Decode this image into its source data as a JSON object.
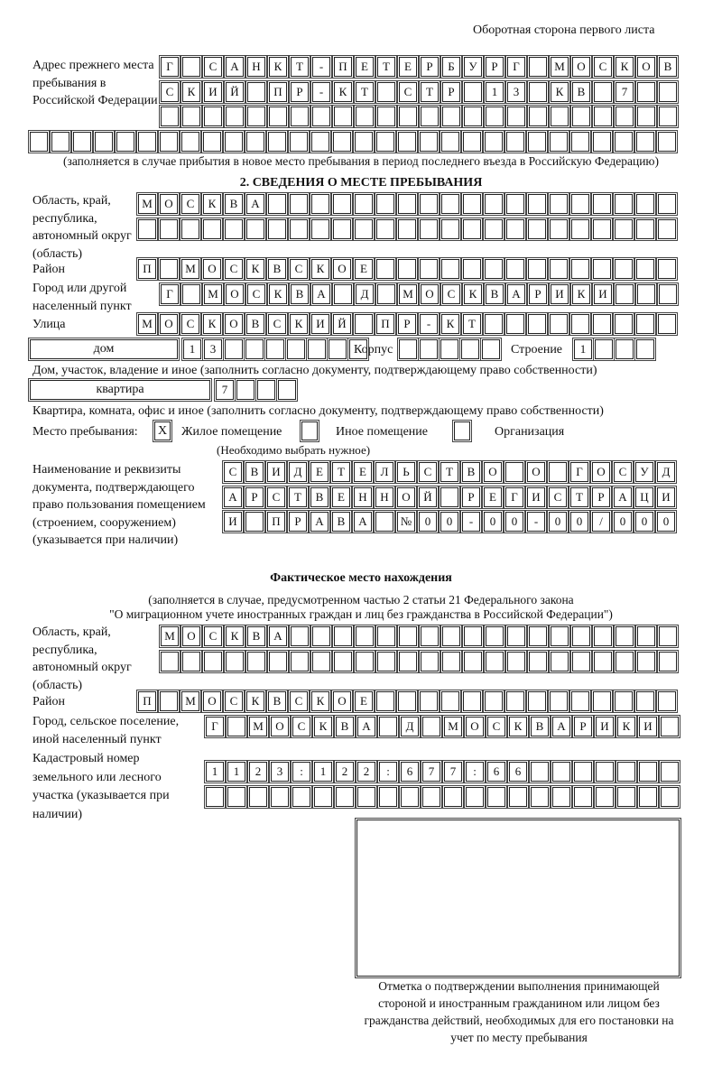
{
  "header": {
    "page_note": "Оборотная сторона первого листа"
  },
  "previous_address": {
    "label": "Адрес прежнего места пребывания в Российской Федерации",
    "rows": [
      [
        "Г",
        "",
        "С",
        "А",
        "Н",
        "К",
        "Т",
        "-",
        "П",
        "Е",
        "Т",
        "Е",
        "Р",
        "Б",
        "У",
        "Р",
        "Г",
        "",
        "М",
        "О",
        "С",
        "К",
        "О",
        "В"
      ],
      [
        "С",
        "К",
        "И",
        "Й",
        "",
        "П",
        "Р",
        "-",
        "К",
        "Т",
        "",
        "С",
        "Т",
        "Р",
        "",
        "1",
        "3",
        "",
        "К",
        "В",
        "",
        "7",
        "",
        ""
      ],
      [
        "",
        "",
        "",
        "",
        "",
        "",
        "",
        "",
        "",
        "",
        "",
        "",
        "",
        "",
        "",
        "",
        "",
        "",
        "",
        "",
        "",
        "",
        "",
        ""
      ],
      [
        "",
        "",
        "",
        "",
        "",
        "",
        "",
        "",
        "",
        "",
        "",
        "",
        "",
        "",
        "",
        "",
        "",
        "",
        "",
        "",
        "",
        "",
        "",
        "",
        "",
        "",
        "",
        "",
        "",
        ""
      ]
    ],
    "note": "(заполняется в случае прибытия в новое место пребывания в период последнего въезда в Российскую Федерацию)"
  },
  "section2": {
    "title": "2. СВЕДЕНИЯ О МЕСТЕ ПРЕБЫВАНИЯ",
    "region_label": "Область, край, республика, автономный округ (область)",
    "region_rows": [
      [
        "М",
        "О",
        "С",
        "К",
        "В",
        "А",
        "",
        "",
        "",
        "",
        "",
        "",
        "",
        "",
        "",
        "",
        "",
        "",
        "",
        "",
        "",
        "",
        "",
        "",
        ""
      ],
      [
        "",
        "",
        "",
        "",
        "",
        "",
        "",
        "",
        "",
        "",
        "",
        "",
        "",
        "",
        "",
        "",
        "",
        "",
        "",
        "",
        "",
        "",
        "",
        "",
        ""
      ]
    ],
    "district_label": "Район",
    "district_row": [
      "П",
      "",
      "М",
      "О",
      "С",
      "К",
      "В",
      "С",
      "К",
      "О",
      "Е",
      "",
      "",
      "",
      "",
      "",
      "",
      "",
      "",
      "",
      "",
      "",
      "",
      "",
      ""
    ],
    "city_label": "Город или другой населенный пункт",
    "city_row": [
      "Г",
      "",
      "М",
      "О",
      "С",
      "К",
      "В",
      "А",
      "",
      "Д",
      "",
      "М",
      "О",
      "С",
      "К",
      "В",
      "А",
      "Р",
      "И",
      "К",
      "И",
      "",
      "",
      ""
    ],
    "street_label": "Улица",
    "street_row": [
      "М",
      "О",
      "С",
      "К",
      "О",
      "В",
      "С",
      "К",
      "И",
      "Й",
      "",
      "П",
      "Р",
      "-",
      "К",
      "Т",
      "",
      "",
      "",
      "",
      "",
      "",
      "",
      "",
      ""
    ],
    "house_type": "дом",
    "house_row": [
      "1",
      "3",
      "",
      "",
      "",
      "",
      "",
      "",
      ""
    ],
    "korpus_label": "Корпус",
    "korpus_row": [
      "",
      "",
      "",
      "",
      ""
    ],
    "building_label": "Строение",
    "building_row": [
      "1",
      "",
      "",
      ""
    ],
    "house_note": "Дом, участок, владение и иное (заполнить согласно документу, подтверждающему право собственности)",
    "apt_type": "квартира",
    "apt_row": [
      "7",
      "",
      "",
      ""
    ],
    "apt_note": "Квартира, комната, офис и иное (заполнить согласно документу, подтверждающему право собственности)",
    "place_label": "Место пребывания:",
    "place_options": [
      {
        "label": "Жилое помещение",
        "mark": "X"
      },
      {
        "label": "Иное помещение",
        "mark": ""
      },
      {
        "label": "Организация",
        "mark": ""
      }
    ],
    "place_note": "(Необходимо выбрать нужное)",
    "doc_label": "Наименование и реквизиты документа, подтверждающего право пользования помещением (строением, сооружением) (указывается при наличии)",
    "doc_rows": [
      [
        "С",
        "В",
        "И",
        "Д",
        "Е",
        "Т",
        "Е",
        "Л",
        "Ь",
        "С",
        "Т",
        "В",
        "О",
        "",
        "О",
        "",
        "Г",
        "О",
        "С",
        "У",
        "Д"
      ],
      [
        "А",
        "Р",
        "С",
        "Т",
        "В",
        "Е",
        "Н",
        "Н",
        "О",
        "Й",
        "",
        "Р",
        "Е",
        "Г",
        "И",
        "С",
        "Т",
        "Р",
        "А",
        "Ц",
        "И"
      ],
      [
        "И",
        "",
        "П",
        "Р",
        "А",
        "В",
        "А",
        "",
        "№",
        "0",
        "0",
        "-",
        "0",
        "0",
        "-",
        "0",
        "0",
        "/",
        "0",
        "0",
        "0"
      ]
    ]
  },
  "actual": {
    "title": "Фактическое место нахождения",
    "note1": "(заполняется в случае, предусмотренном частью 2 статьи 21 Федерального закона",
    "note2": "\"О миграционном учете иностранных граждан и лиц без гражданства в Российской Федерации\")",
    "region_label": "Область, край, республика, автономный округ (область)",
    "region_rows": [
      [
        "М",
        "О",
        "С",
        "К",
        "В",
        "А",
        "",
        "",
        "",
        "",
        "",
        "",
        "",
        "",
        "",
        "",
        "",
        "",
        "",
        "",
        "",
        "",
        "",
        ""
      ],
      [
        "",
        "",
        "",
        "",
        "",
        "",
        "",
        "",
        "",
        "",
        "",
        "",
        "",
        "",
        "",
        "",
        "",
        "",
        "",
        "",
        "",
        "",
        "",
        ""
      ]
    ],
    "district_label": "Район",
    "district_row": [
      "П",
      "",
      "М",
      "О",
      "С",
      "К",
      "В",
      "С",
      "К",
      "О",
      "Е",
      "",
      "",
      "",
      "",
      "",
      "",
      "",
      "",
      "",
      "",
      "",
      "",
      "",
      ""
    ],
    "city_label": "Город, сельское поселение, иной населенный пункт",
    "city_row": [
      "Г",
      "",
      "М",
      "О",
      "С",
      "К",
      "В",
      "А",
      "",
      "Д",
      "",
      "М",
      "О",
      "С",
      "К",
      "В",
      "А",
      "Р",
      "И",
      "К",
      "И",
      ""
    ],
    "cadastre_label": "Кадастровый номер земельного или лесного участка (указывается при наличии)",
    "cadastre_rows": [
      [
        "1",
        "1",
        "2",
        "3",
        ":",
        "1",
        "2",
        "2",
        ":",
        "6",
        "7",
        "7",
        ":",
        "6",
        "6",
        "",
        "",
        "",
        "",
        "",
        "",
        ""
      ],
      [
        "",
        "",
        "",
        "",
        "",
        "",
        "",
        "",
        "",
        "",
        "",
        "",
        "",
        "",
        "",
        "",
        "",
        "",
        "",
        "",
        "",
        ""
      ]
    ],
    "stamp_caption": "Отметка о подтверждении выполнения принимающей стороной и иностранным гражданином или лицом без гражданства действий, необходимых для его постановки на учет по месту пребывания"
  }
}
